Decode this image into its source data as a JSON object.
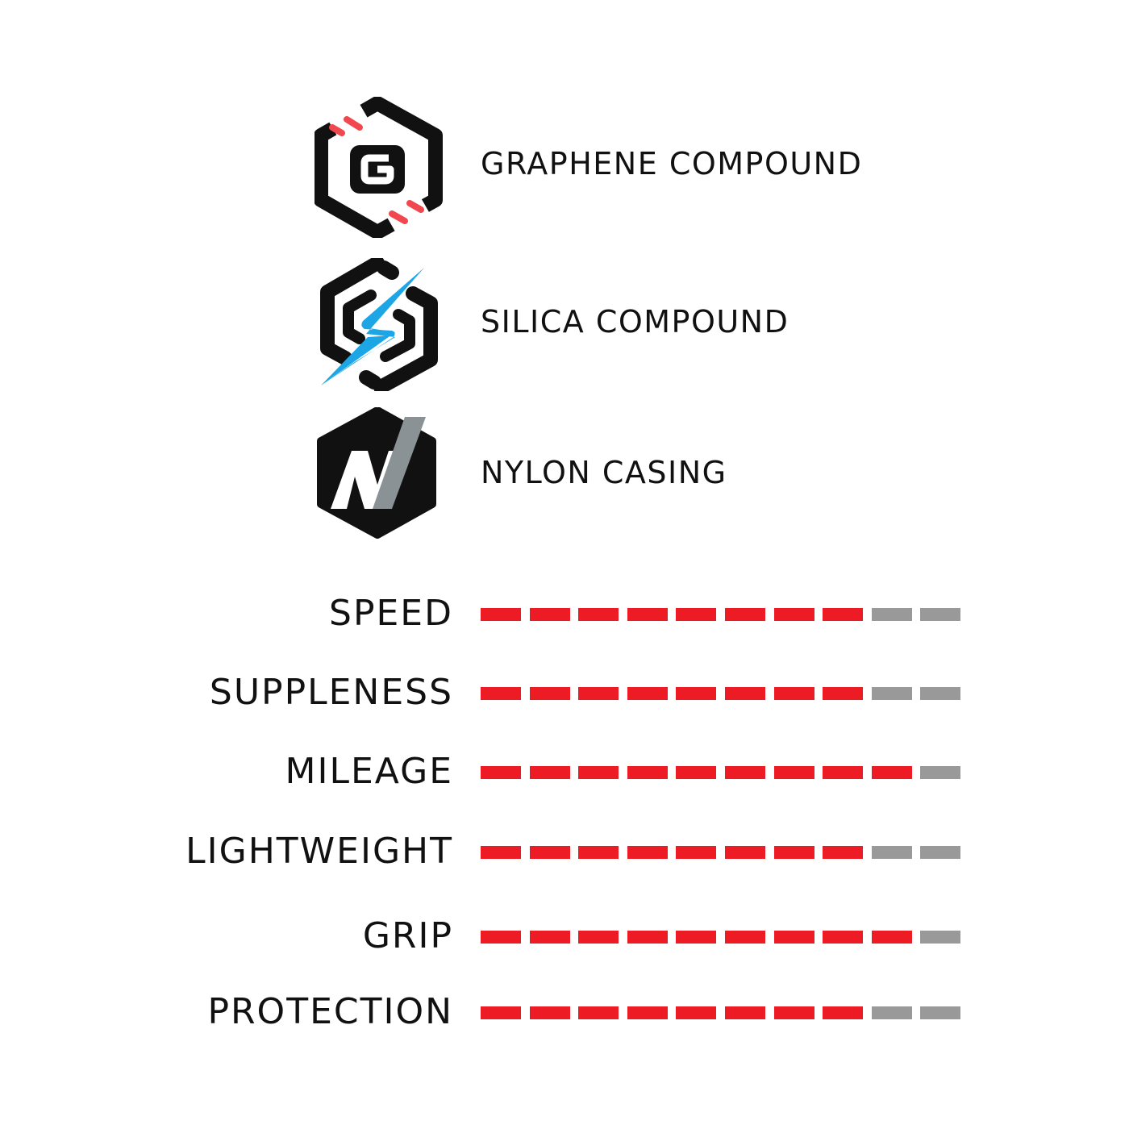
{
  "features": [
    {
      "icon": "graphene-hex-g-icon",
      "label": "GRAPHENE COMPOUND"
    },
    {
      "icon": "silica-lightning-icon",
      "label": "SILICA COMPOUND"
    },
    {
      "icon": "nylon-hex-n-icon",
      "label": "NYLON CASING"
    }
  ],
  "ratings": [
    {
      "label": "SPEED",
      "value": 8,
      "max": 10
    },
    {
      "label": "SUPPLENESS",
      "value": 8,
      "max": 10
    },
    {
      "label": "MILEAGE",
      "value": 9,
      "max": 10
    },
    {
      "label": "LIGHTWEIGHT",
      "value": 8,
      "max": 10
    },
    {
      "label": "GRIP",
      "value": 9,
      "max": 10
    },
    {
      "label": "PROTECTION",
      "value": 8,
      "max": 10
    }
  ],
  "colors": {
    "filled": "#ed1c24",
    "empty": "#999999",
    "graphene_accent": "#f0484e",
    "silica_accent": "#1da6e6",
    "nylon_accent": "#8a9296",
    "text": "#111111"
  }
}
